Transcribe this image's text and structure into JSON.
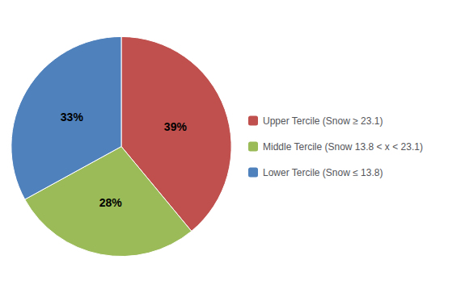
{
  "chart_data": {
    "type": "pie",
    "categories": [
      "Upper Tercile (Snow ≥ 23.1)",
      "Middle Tercile (Snow 13.8 < x < 23.1)",
      "Lower Tercile (Snow ≤ 13.8)"
    ],
    "values": [
      39,
      28,
      33
    ],
    "value_labels": [
      "39%",
      "28%",
      "33%"
    ],
    "colors": [
      "#c0504d",
      "#9bbb59",
      "#4f81bd"
    ],
    "data_labels": true,
    "legend": "right"
  }
}
